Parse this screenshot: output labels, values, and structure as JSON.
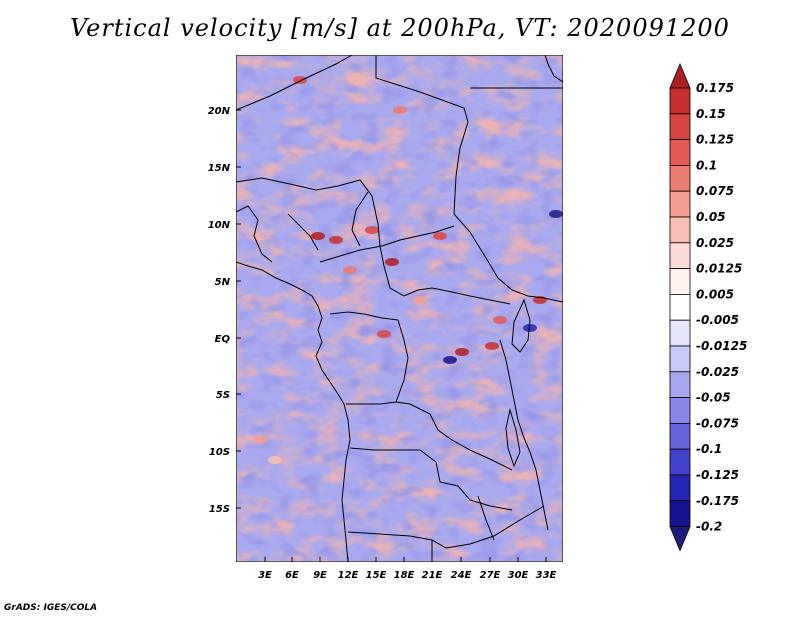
{
  "title": "Vertical velocity [m/s] at 200hPa, VT: 2020091200",
  "credit": "GrADS: IGES/COLA",
  "map": {
    "lat_labels": [
      "20N",
      "15N",
      "10N",
      "5N",
      "EQ",
      "5S",
      "10S",
      "15S"
    ],
    "lon_labels": [
      "3E",
      "6E",
      "9E",
      "12E",
      "15E",
      "18E",
      "21E",
      "24E",
      "27E",
      "30E",
      "33E"
    ]
  },
  "colorbar": {
    "levels": [
      "0.175",
      "0.15",
      "0.125",
      "0.1",
      "0.075",
      "0.05",
      "0.025",
      "0.0125",
      "0.005",
      "-0.005",
      "-0.0125",
      "-0.025",
      "-0.05",
      "-0.075",
      "-0.1",
      "-0.125",
      "-0.175",
      "-0.2"
    ],
    "colors": [
      "#b01e23",
      "#c8302f",
      "#da4541",
      "#e45b54",
      "#ec7b72",
      "#f29c92",
      "#f8bdb4",
      "#fcddd7",
      "#fff2ee",
      "#ffffff",
      "#e5e5fb",
      "#c9c9f5",
      "#a7a7ef",
      "#8787e7",
      "#6464dc",
      "#4242cc",
      "#2626b4",
      "#141490",
      "#1d1d7e"
    ]
  }
}
